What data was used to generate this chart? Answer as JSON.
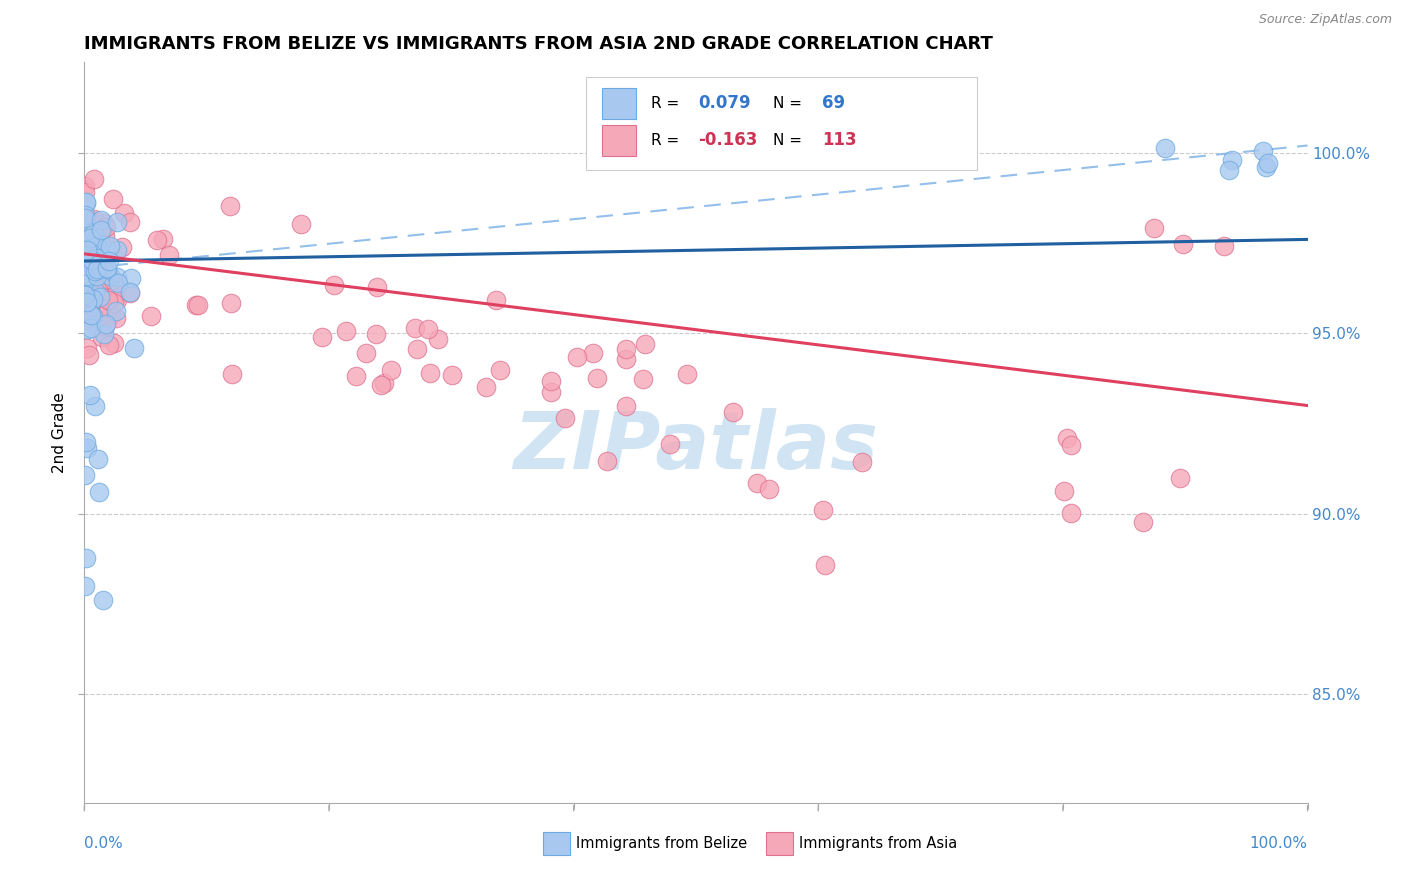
{
  "title": "IMMIGRANTS FROM BELIZE VS IMMIGRANTS FROM ASIA 2ND GRADE CORRELATION CHART",
  "source": "Source: ZipAtlas.com",
  "ylabel": "2nd Grade",
  "ytick_labels": [
    "85.0%",
    "90.0%",
    "95.0%",
    "100.0%"
  ],
  "ytick_values": [
    0.85,
    0.9,
    0.95,
    1.0
  ],
  "legend_belize": "Immigrants from Belize",
  "legend_asia": "Immigrants from Asia",
  "R_belize": 0.079,
  "N_belize": 69,
  "R_asia": -0.163,
  "N_asia": 113,
  "belize_color": "#a8c8f0",
  "belize_edge_color": "#6aaae0",
  "asia_color": "#f5a8b8",
  "asia_edge_color": "#e07090",
  "trend_belize_color": "#2060a0",
  "trend_asia_color": "#e04060",
  "diag_color": "#88b8e8",
  "watermark_color": "#d0e4f4",
  "xlim": [
    0.0,
    1.0
  ],
  "ylim": [
    0.82,
    1.025
  ]
}
